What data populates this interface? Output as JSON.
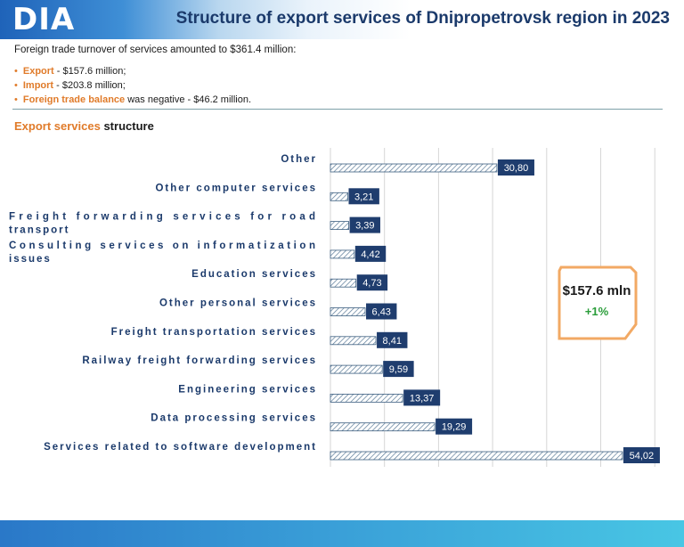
{
  "header": {
    "logo": "DIA",
    "title": "Structure of export services of Dnipropetrovsk region in 2023"
  },
  "intro": "Foreign trade turnover of services amounted to $361.4 million:",
  "bullets": [
    {
      "label": "Export",
      "text": " - $157.6 million;"
    },
    {
      "label": "Import",
      "text": " - $203.8 million;"
    },
    {
      "label": "Foreign trade balance",
      "text": " was negative - $46.2 million."
    }
  ],
  "subtitle": {
    "highlight": "Export services",
    "rest": " structure"
  },
  "callout": {
    "value": "$157.6 mln",
    "change": "+1%"
  },
  "colors": {
    "accent": "#e07b2a",
    "bar_label_bg": "#1f3d6e",
    "positive": "#2a9d3a",
    "header_blue": "#1f63b9"
  },
  "chart_data": {
    "type": "bar",
    "orientation": "horizontal",
    "categories": [
      "Other",
      "Other computer services",
      "Freight forwarding services for road transport",
      "Consulting services on informatization issues",
      "Education services",
      "Other personal services",
      "Freight transportation services",
      "Railway freight forwarding services",
      "Engineering services",
      "Data processing services",
      "Services related to software development"
    ],
    "values": [
      30.8,
      3.21,
      3.39,
      4.42,
      4.73,
      6.43,
      8.41,
      9.59,
      13.37,
      19.29,
      54.02
    ],
    "value_labels": [
      "30,80",
      "3,21",
      "3,39",
      "4,42",
      "4,73",
      "6,43",
      "8,41",
      "9,59",
      "13,37",
      "19,29",
      "54,02"
    ],
    "xlim": [
      0,
      60
    ],
    "grid": true,
    "legend": "none"
  }
}
